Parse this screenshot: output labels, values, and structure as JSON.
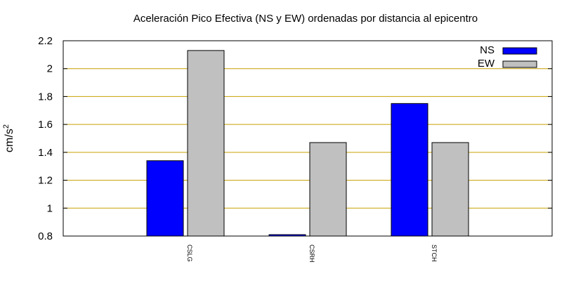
{
  "chart_data": {
    "type": "bar",
    "title": "Aceleración Pico Efectiva (NS y EW) ordenadas por distancia al epicentro",
    "ylabel_base": "cm/s",
    "ylabel_sup": "2",
    "xlabel": "",
    "categories": [
      "CSLG",
      "CSRH",
      "STCH"
    ],
    "series": [
      {
        "name": "NS",
        "color": "#0000ff",
        "values": [
          1.34,
          0.81,
          1.75
        ]
      },
      {
        "name": "EW",
        "color": "#c0c0c0",
        "values": [
          2.13,
          1.47,
          1.47
        ]
      }
    ],
    "ylim": [
      0.8,
      2.2
    ],
    "yticks": [
      "0.8",
      "1",
      "1.2",
      "1.4",
      "1.6",
      "1.8",
      "2",
      "2.2"
    ],
    "grid": true,
    "grid_color": "#c8a000",
    "legend_position": "top-right"
  }
}
